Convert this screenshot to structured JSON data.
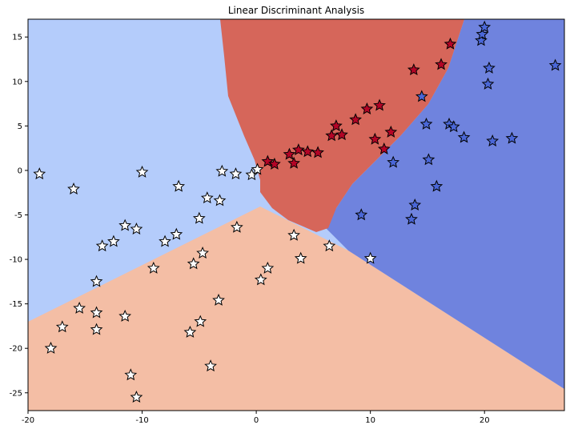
{
  "chart_data": {
    "type": "scatter",
    "title": "Linear Discriminant Analysis",
    "xlabel": "",
    "ylabel": "",
    "xlim": [
      -20,
      27
    ],
    "ylim": [
      -27,
      17
    ],
    "x_ticks": [
      -20,
      -10,
      0,
      10,
      20
    ],
    "y_ticks": [
      15,
      10,
      5,
      0,
      -5,
      -10,
      -15,
      -20,
      -25
    ],
    "grid": false,
    "background_regions": {
      "light_blue": "#b4ccfb",
      "salmon": "#f4bea5",
      "red": "#d6665a",
      "dark_blue": "#6f83de"
    },
    "marker_colors": {
      "white": "#ffffff",
      "red": "#b40426",
      "blue": "#4a67d8"
    },
    "series": [
      {
        "color": "white",
        "points": [
          [
            -19,
            -0.4
          ],
          [
            -16,
            -2.1
          ],
          [
            -10,
            -0.2
          ],
          [
            -14,
            -12.5
          ],
          [
            -15.5,
            -15.5
          ],
          [
            -14,
            -16
          ],
          [
            -14,
            -17.9
          ],
          [
            -17,
            -17.6
          ],
          [
            -18,
            -20
          ],
          [
            -11.5,
            -16.4
          ],
          [
            -11,
            -23
          ],
          [
            -10.5,
            -25.5
          ],
          [
            -13.5,
            -8.5
          ],
          [
            -12.5,
            -8
          ],
          [
            -11.5,
            -6.2
          ],
          [
            -10.5,
            -6.6
          ],
          [
            -9,
            -11
          ],
          [
            -8,
            -8
          ],
          [
            -7,
            -7.2
          ],
          [
            -6.8,
            -1.8
          ],
          [
            -5,
            -5.4
          ],
          [
            -4.3,
            -3.1
          ],
          [
            -3.2,
            -3.4
          ],
          [
            -3,
            -0.1
          ],
          [
            -1.8,
            -0.4
          ],
          [
            -1.7,
            -6.4
          ],
          [
            -0.4,
            -0.5
          ],
          [
            0.1,
            0.1
          ],
          [
            -5.5,
            -10.5
          ],
          [
            -4.7,
            -9.3
          ],
          [
            -5.8,
            -18.2
          ],
          [
            -4.9,
            -17
          ],
          [
            -4,
            -22
          ],
          [
            -3.3,
            -14.6
          ],
          [
            0.4,
            -12.3
          ],
          [
            1,
            -11
          ],
          [
            3.3,
            -7.3
          ],
          [
            3.9,
            -9.9
          ],
          [
            6.4,
            -8.5
          ],
          [
            10,
            -9.9
          ]
        ]
      },
      {
        "color": "red",
        "points": [
          [
            1,
            1
          ],
          [
            1.6,
            0.7
          ],
          [
            2.9,
            1.8
          ],
          [
            3.3,
            0.8
          ],
          [
            3.7,
            2.3
          ],
          [
            4.5,
            2.1
          ],
          [
            5.4,
            2
          ],
          [
            6.6,
            3.9
          ],
          [
            7,
            5
          ],
          [
            7.5,
            4
          ],
          [
            8.7,
            5.7
          ],
          [
            9.7,
            6.9
          ],
          [
            10.8,
            7.3
          ],
          [
            10.4,
            3.5
          ],
          [
            11.2,
            2.4
          ],
          [
            11.8,
            4.3
          ],
          [
            13.8,
            11.3
          ],
          [
            16.2,
            11.9
          ],
          [
            17,
            14.2
          ]
        ]
      },
      {
        "color": "blue",
        "points": [
          [
            12,
            0.9
          ],
          [
            9.2,
            -5
          ],
          [
            14.5,
            8.3
          ],
          [
            14.9,
            5.2
          ],
          [
            15.1,
            1.2
          ],
          [
            15.8,
            -1.8
          ],
          [
            13.9,
            -3.9
          ],
          [
            13.6,
            -5.5
          ],
          [
            16.9,
            5.2
          ],
          [
            17.3,
            4.9
          ],
          [
            18.2,
            3.7
          ],
          [
            19.7,
            14.6
          ],
          [
            19.8,
            15.3
          ],
          [
            20,
            16.1
          ],
          [
            20.3,
            9.7
          ],
          [
            20.4,
            11.5
          ],
          [
            20.7,
            3.3
          ],
          [
            22.4,
            3.6
          ],
          [
            26.2,
            11.8
          ]
        ]
      }
    ]
  }
}
